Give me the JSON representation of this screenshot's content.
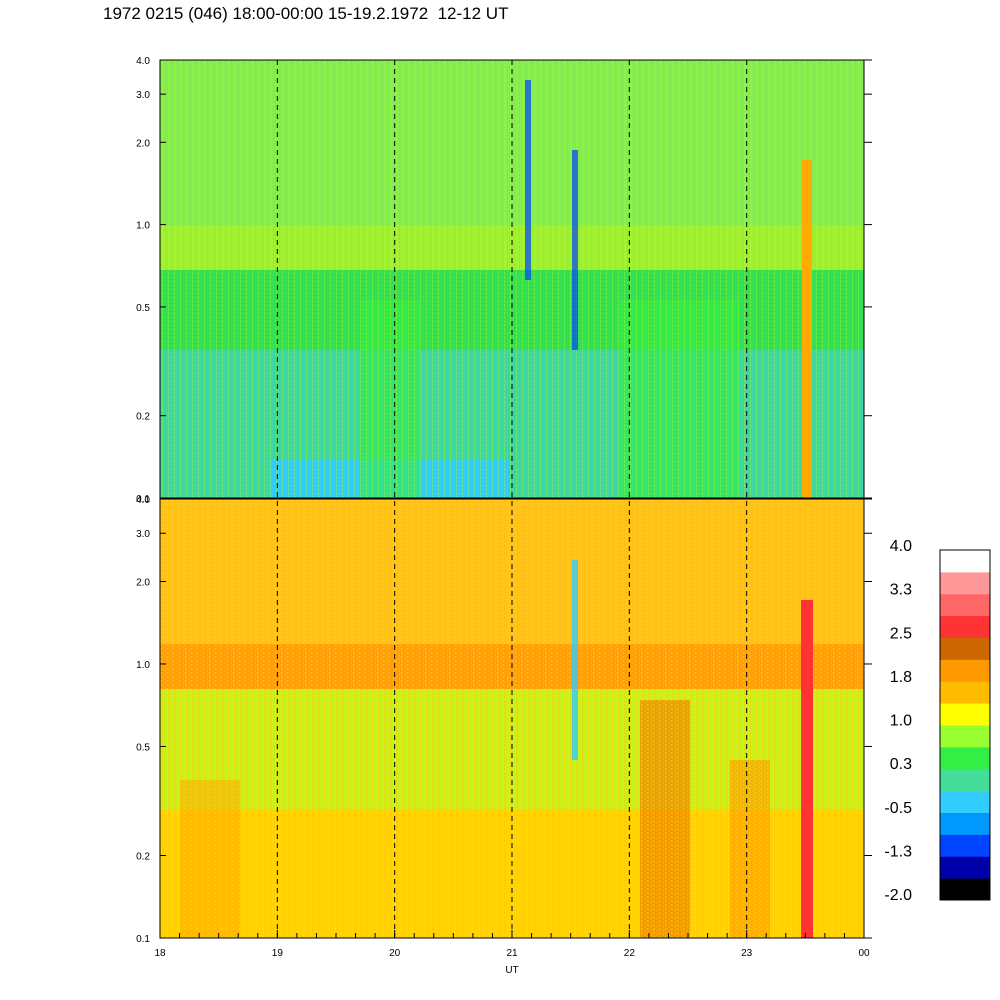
{
  "title": "1972 0215 (046) 18:00-00:00 15-19.2.1972  12-12 UT",
  "chart_data": {
    "type": "heatmap",
    "xlabel": "UT",
    "x_ticks": [
      "18",
      "19",
      "20",
      "21",
      "22",
      "23",
      "00"
    ],
    "xlim": [
      18,
      24
    ],
    "y_scale": "log",
    "ylim": [
      0.1,
      4.0
    ],
    "panels": [
      {
        "y_ticks": [
          "4.0",
          "3.0",
          "2.0",
          "1.0",
          "0.5",
          "0.2",
          "0.1"
        ],
        "y_values": [
          4.0,
          3.0,
          2.0,
          1.0,
          0.5,
          0.2,
          0.1
        ]
      },
      {
        "y_ticks": [
          "4.0",
          "3.0",
          "2.0",
          "1.0",
          "0.5",
          "0.2",
          "0.1"
        ],
        "y_values": [
          4.0,
          3.0,
          2.0,
          1.0,
          0.5,
          0.2,
          0.1
        ]
      }
    ],
    "colorbar": {
      "labels": [
        "4.0",
        "3.3",
        "2.5",
        "1.8",
        "1.0",
        "0.3",
        "-0.5",
        "-1.3",
        "-2.0"
      ],
      "range": [
        -2.0,
        4.0
      ],
      "colors": [
        "#000000",
        "#0000aa",
        "#0044ff",
        "#0099ff",
        "#33ccff",
        "#44dd99",
        "#33ee44",
        "#99ff33",
        "#ffff00",
        "#ffbb00",
        "#ff9900",
        "#cc6600",
        "#ff3333",
        "#ff6666",
        "#ff9999",
        "#ffffff"
      ]
    },
    "dashed_vertical_lines_at": [
      19,
      20,
      21,
      22,
      23
    ],
    "grid": false
  }
}
